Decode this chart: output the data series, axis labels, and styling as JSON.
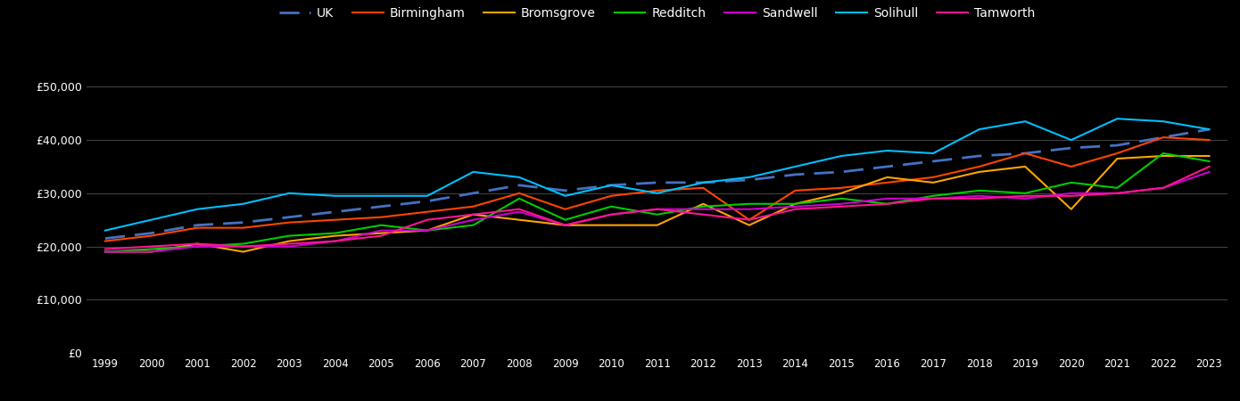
{
  "years": [
    1999,
    2000,
    2001,
    2002,
    2003,
    2004,
    2005,
    2006,
    2007,
    2008,
    2009,
    2010,
    2011,
    2012,
    2013,
    2014,
    2015,
    2016,
    2017,
    2018,
    2019,
    2020,
    2021,
    2022,
    2023
  ],
  "UK": [
    21500,
    22500,
    24000,
    24500,
    25500,
    26500,
    27500,
    28500,
    30000,
    31500,
    30500,
    31500,
    32000,
    32000,
    32500,
    33500,
    34000,
    35000,
    36000,
    37000,
    37500,
    38500,
    39000,
    40500,
    42000
  ],
  "Birmingham": [
    21000,
    22000,
    23500,
    23500,
    24500,
    25000,
    25500,
    26500,
    27500,
    30000,
    27000,
    29500,
    30500,
    31000,
    25000,
    30500,
    31000,
    32000,
    33000,
    35000,
    37500,
    35000,
    37500,
    40500,
    40000
  ],
  "Bromsgrove": [
    19000,
    19000,
    20500,
    19000,
    21000,
    22000,
    22500,
    23000,
    26000,
    25000,
    24000,
    24000,
    24000,
    28000,
    24000,
    28000,
    30000,
    33000,
    32000,
    34000,
    35000,
    27000,
    36500,
    37000,
    37000
  ],
  "Redditch": [
    19000,
    19500,
    20000,
    20500,
    22000,
    22500,
    24000,
    23000,
    24000,
    29000,
    25000,
    27500,
    26000,
    27500,
    28000,
    28000,
    29000,
    28000,
    29500,
    30500,
    30000,
    32000,
    31000,
    37500,
    36000
  ],
  "Sandwell": [
    19000,
    19000,
    20000,
    20000,
    20000,
    21000,
    23000,
    23000,
    25000,
    26500,
    24000,
    26000,
    27000,
    27000,
    27000,
    27500,
    28000,
    29000,
    29000,
    29500,
    29000,
    30000,
    30000,
    31000,
    34000
  ],
  "Solihull": [
    23000,
    25000,
    27000,
    28000,
    30000,
    29500,
    29500,
    29500,
    34000,
    33000,
    29500,
    31500,
    30000,
    32000,
    33000,
    35000,
    37000,
    38000,
    37500,
    42000,
    43500,
    40000,
    44000,
    43500,
    42000
  ],
  "Tamworth": [
    19500,
    20000,
    20500,
    20000,
    20500,
    21000,
    22000,
    25000,
    26000,
    27000,
    24000,
    26000,
    27000,
    26000,
    25000,
    27000,
    27500,
    28000,
    29000,
    29000,
    29500,
    29500,
    30000,
    31000,
    35000
  ],
  "colors": {
    "UK": "#4472c4",
    "Birmingham": "#ff4500",
    "Bromsgrove": "#ffa500",
    "Redditch": "#00cc00",
    "Sandwell": "#cc00cc",
    "Solihull": "#00bfff",
    "Tamworth": "#ff1493"
  },
  "background_color": "#000000",
  "grid_color": "#404040",
  "text_color": "#ffffff",
  "ylim": [
    0,
    55000
  ],
  "yticks": [
    0,
    10000,
    20000,
    30000,
    40000,
    50000
  ],
  "ytick_labels": [
    "£0",
    "£10,000",
    "£20,000",
    "£30,000",
    "£40,000",
    "£50,000"
  ]
}
